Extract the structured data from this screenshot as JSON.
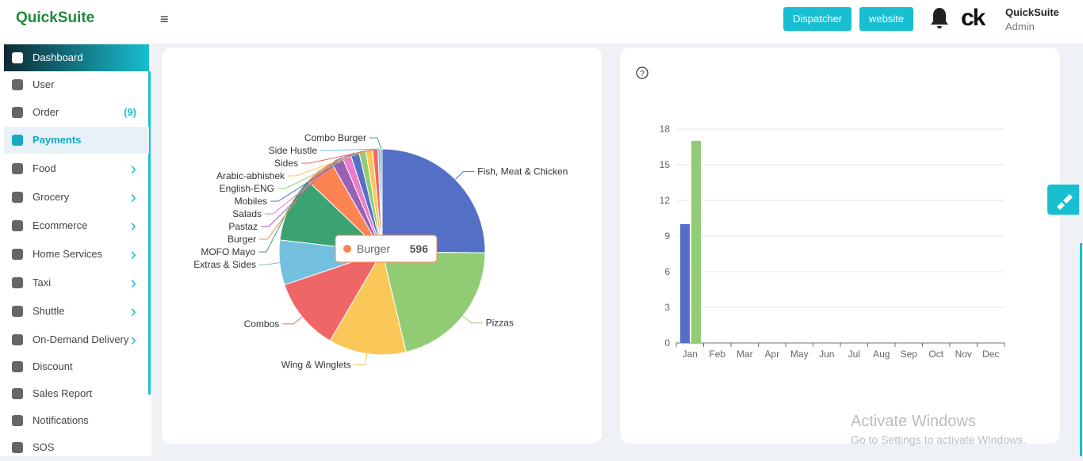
{
  "header": {
    "logo": "QuickSuite",
    "menu_icon": "≡",
    "buttons": [
      "Dispatcher",
      "website"
    ],
    "avatar": "ck",
    "user_name": "QuickSuite",
    "user_role": "Admin"
  },
  "sidebar": {
    "items": [
      "Dashboard",
      "User",
      "Order",
      "Payments",
      "Food",
      "Grocery",
      "Ecommerce",
      "Home Services",
      "Taxi",
      "Shuttle",
      "On-Demand Delivery",
      "Discount",
      "Sales Report",
      "Notifications",
      "SOS"
    ],
    "order_count": "(9)"
  },
  "chart_data": [
    {
      "type": "pie",
      "categories": [
        "Fish, Meat & Chicken",
        "Pizzas",
        "Wing & Winglets",
        "Combos",
        "Extras & Sides",
        "MOFO Mayo",
        "Burger",
        "Pastaz",
        "Salads",
        "Mobiles",
        "English-ENG",
        "Arabic-abhishek",
        "Sides",
        "Side Hustle",
        "Combo Burger"
      ],
      "values": [
        3250,
        2730,
        1575,
        1470,
        910,
        1330,
        596,
        245,
        175,
        175,
        140,
        140,
        105,
        50,
        35
      ],
      "colors": [
        "#5470c6",
        "#91cc75",
        "#fac858",
        "#ee6666",
        "#73c0de",
        "#3ba272",
        "#fc8452",
        "#9a60b4",
        "#ea7ccc",
        "#5470c6",
        "#91cc75",
        "#fac858",
        "#ee6666",
        "#73c0de",
        "#3ba272"
      ]
    },
    {
      "type": "bar",
      "categories": [
        "Jan",
        "Feb",
        "Mar",
        "Apr",
        "May",
        "Jun",
        "Jul",
        "Aug",
        "Sep",
        "Oct",
        "Nov",
        "Dec"
      ],
      "series": [
        {
          "color": "#5470c6",
          "values": [
            10,
            0,
            0,
            0,
            0,
            0,
            0,
            0,
            0,
            0,
            0,
            0
          ]
        },
        {
          "color": "#91cc75",
          "values": [
            17,
            0,
            0,
            0,
            0,
            0,
            0,
            0,
            0,
            0,
            0,
            0
          ]
        }
      ],
      "ylim": [
        0,
        18
      ],
      "yticks": [
        0,
        3,
        6,
        9,
        12,
        15,
        18
      ],
      "grid": true
    }
  ],
  "watermark": {
    "title": "Activate Windows",
    "subtitle": "Go to Settings to activate Windows."
  }
}
